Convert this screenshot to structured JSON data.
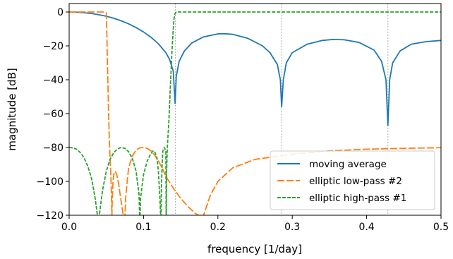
{
  "chart_data": {
    "type": "line",
    "xlabel": "frequency [1/day]",
    "ylabel": "magnitude [dB]",
    "xlim": [
      0.0,
      0.5
    ],
    "ylim": [
      -120,
      5
    ],
    "xticks": [
      0.0,
      0.1,
      0.2,
      0.3,
      0.4,
      0.5
    ],
    "xtick_labels": [
      "0.0",
      "0.1",
      "0.2",
      "0.3",
      "0.4",
      "0.5"
    ],
    "yticks": [
      0,
      -20,
      -40,
      -60,
      -80,
      -100,
      -120
    ],
    "ytick_labels": [
      "0",
      "−20",
      "−40",
      "−60",
      "−80",
      "−100",
      "−120"
    ],
    "grid": false,
    "legend_position": "lower-right",
    "vlines": [
      0.142857,
      0.285714,
      0.428571
    ],
    "series": [
      {
        "name": "moving average",
        "color": "#1f77b4",
        "style": "solid",
        "x": [
          0.0,
          0.01,
          0.02,
          0.03,
          0.04,
          0.05,
          0.06,
          0.07,
          0.08,
          0.09,
          0.1,
          0.11,
          0.12,
          0.13,
          0.135,
          0.14,
          0.1425,
          0.144,
          0.148,
          0.155,
          0.165,
          0.18,
          0.2,
          0.21,
          0.22,
          0.24,
          0.26,
          0.27,
          0.28,
          0.284,
          0.2857,
          0.288,
          0.292,
          0.3,
          0.32,
          0.34,
          0.355,
          0.37,
          0.39,
          0.41,
          0.42,
          0.426,
          0.4286,
          0.431,
          0.435,
          0.445,
          0.46,
          0.48,
          0.5
        ],
        "y": [
          0.0,
          -0.1,
          -0.4,
          -0.9,
          -1.6,
          -2.5,
          -3.7,
          -5.2,
          -7.0,
          -9.2,
          -11.8,
          -14.9,
          -18.8,
          -24.0,
          -28.0,
          -35.0,
          -54.0,
          -38.0,
          -29.0,
          -23.0,
          -18.3,
          -14.8,
          -12.9,
          -12.8,
          -13.2,
          -15.5,
          -20.0,
          -24.0,
          -31.0,
          -40.0,
          -56.0,
          -40.0,
          -30.0,
          -24.0,
          -19.0,
          -16.8,
          -16.2,
          -16.4,
          -18.0,
          -22.5,
          -29.0,
          -40.0,
          -67.0,
          -40.0,
          -30.0,
          -23.0,
          -19.0,
          -17.5,
          -16.8
        ]
      },
      {
        "name": "elliptic low-pass #2",
        "color": "#ff7f0e",
        "style": "dashed",
        "x": [
          0.0,
          0.02,
          0.04,
          0.048,
          0.05,
          0.051,
          0.052,
          0.053,
          0.054,
          0.055,
          0.056,
          0.057,
          0.0575,
          0.058,
          0.059,
          0.06,
          0.062,
          0.064,
          0.066,
          0.068,
          0.07,
          0.072,
          0.074,
          0.0745,
          0.075,
          0.076,
          0.078,
          0.08,
          0.085,
          0.09,
          0.095,
          0.1,
          0.105,
          0.11,
          0.115,
          0.12,
          0.125,
          0.13,
          0.14,
          0.15,
          0.16,
          0.17,
          0.178,
          0.179,
          0.18,
          0.19,
          0.2,
          0.22,
          0.25,
          0.3,
          0.35,
          0.4,
          0.45,
          0.5
        ],
        "y": [
          0.0,
          0.0,
          0.0,
          0.0,
          -0.5,
          -20.0,
          -40.0,
          -60.0,
          -75.0,
          -86.0,
          -95.0,
          -110.0,
          -120.0,
          -110.0,
          -100.0,
          -96.0,
          -94.0,
          -96.0,
          -100.0,
          -106.0,
          -112.0,
          -118.0,
          -122.0,
          -130.0,
          -122.0,
          -110.0,
          -100.0,
          -92.0,
          -85.0,
          -81.5,
          -80.2,
          -80.0,
          -80.5,
          -82.0,
          -84.5,
          -88.0,
          -92.0,
          -97.0,
          -104.0,
          -110.0,
          -115.0,
          -119.0,
          -121.0,
          -130.0,
          -121.0,
          -108.0,
          -100.0,
          -92.0,
          -87.0,
          -84.0,
          -82.0,
          -81.0,
          -80.5,
          -80.1
        ]
      },
      {
        "name": "elliptic high-pass #1",
        "color": "#2ca02c",
        "style": "dotted-dash",
        "x": [
          0.0,
          0.005,
          0.01,
          0.015,
          0.02,
          0.025,
          0.03,
          0.035,
          0.038,
          0.039,
          0.04,
          0.045,
          0.05,
          0.055,
          0.06,
          0.065,
          0.07,
          0.075,
          0.08,
          0.085,
          0.09,
          0.094,
          0.095,
          0.096,
          0.1,
          0.105,
          0.11,
          0.113,
          0.115,
          0.118,
          0.12,
          0.122,
          0.1235,
          0.124,
          0.125,
          0.126,
          0.128,
          0.13,
          0.1305,
          0.131,
          0.132,
          0.134,
          0.136,
          0.138,
          0.14,
          0.141,
          0.142,
          0.143,
          0.145,
          0.15,
          0.2,
          0.3,
          0.4,
          0.5
        ],
        "y": [
          -80.0,
          -80.2,
          -81.0,
          -83.0,
          -86.0,
          -91.0,
          -98.0,
          -110.0,
          -120.0,
          -130.0,
          -122.0,
          -105.0,
          -94.0,
          -87.0,
          -83.0,
          -80.8,
          -80.0,
          -80.5,
          -82.5,
          -86.5,
          -94.0,
          -108.0,
          -125.0,
          -110.0,
          -96.0,
          -88.0,
          -83.5,
          -82.0,
          -82.5,
          -86.0,
          -94.0,
          -110.0,
          -125.0,
          -105.0,
          -90.0,
          -82.0,
          -80.0,
          -82.0,
          -125.0,
          -95.0,
          -80.0,
          -65.0,
          -45.0,
          -25.0,
          -10.0,
          -4.0,
          -1.5,
          -0.4,
          0.0,
          0.0,
          0.0,
          0.0,
          0.0,
          0.0
        ]
      }
    ]
  }
}
